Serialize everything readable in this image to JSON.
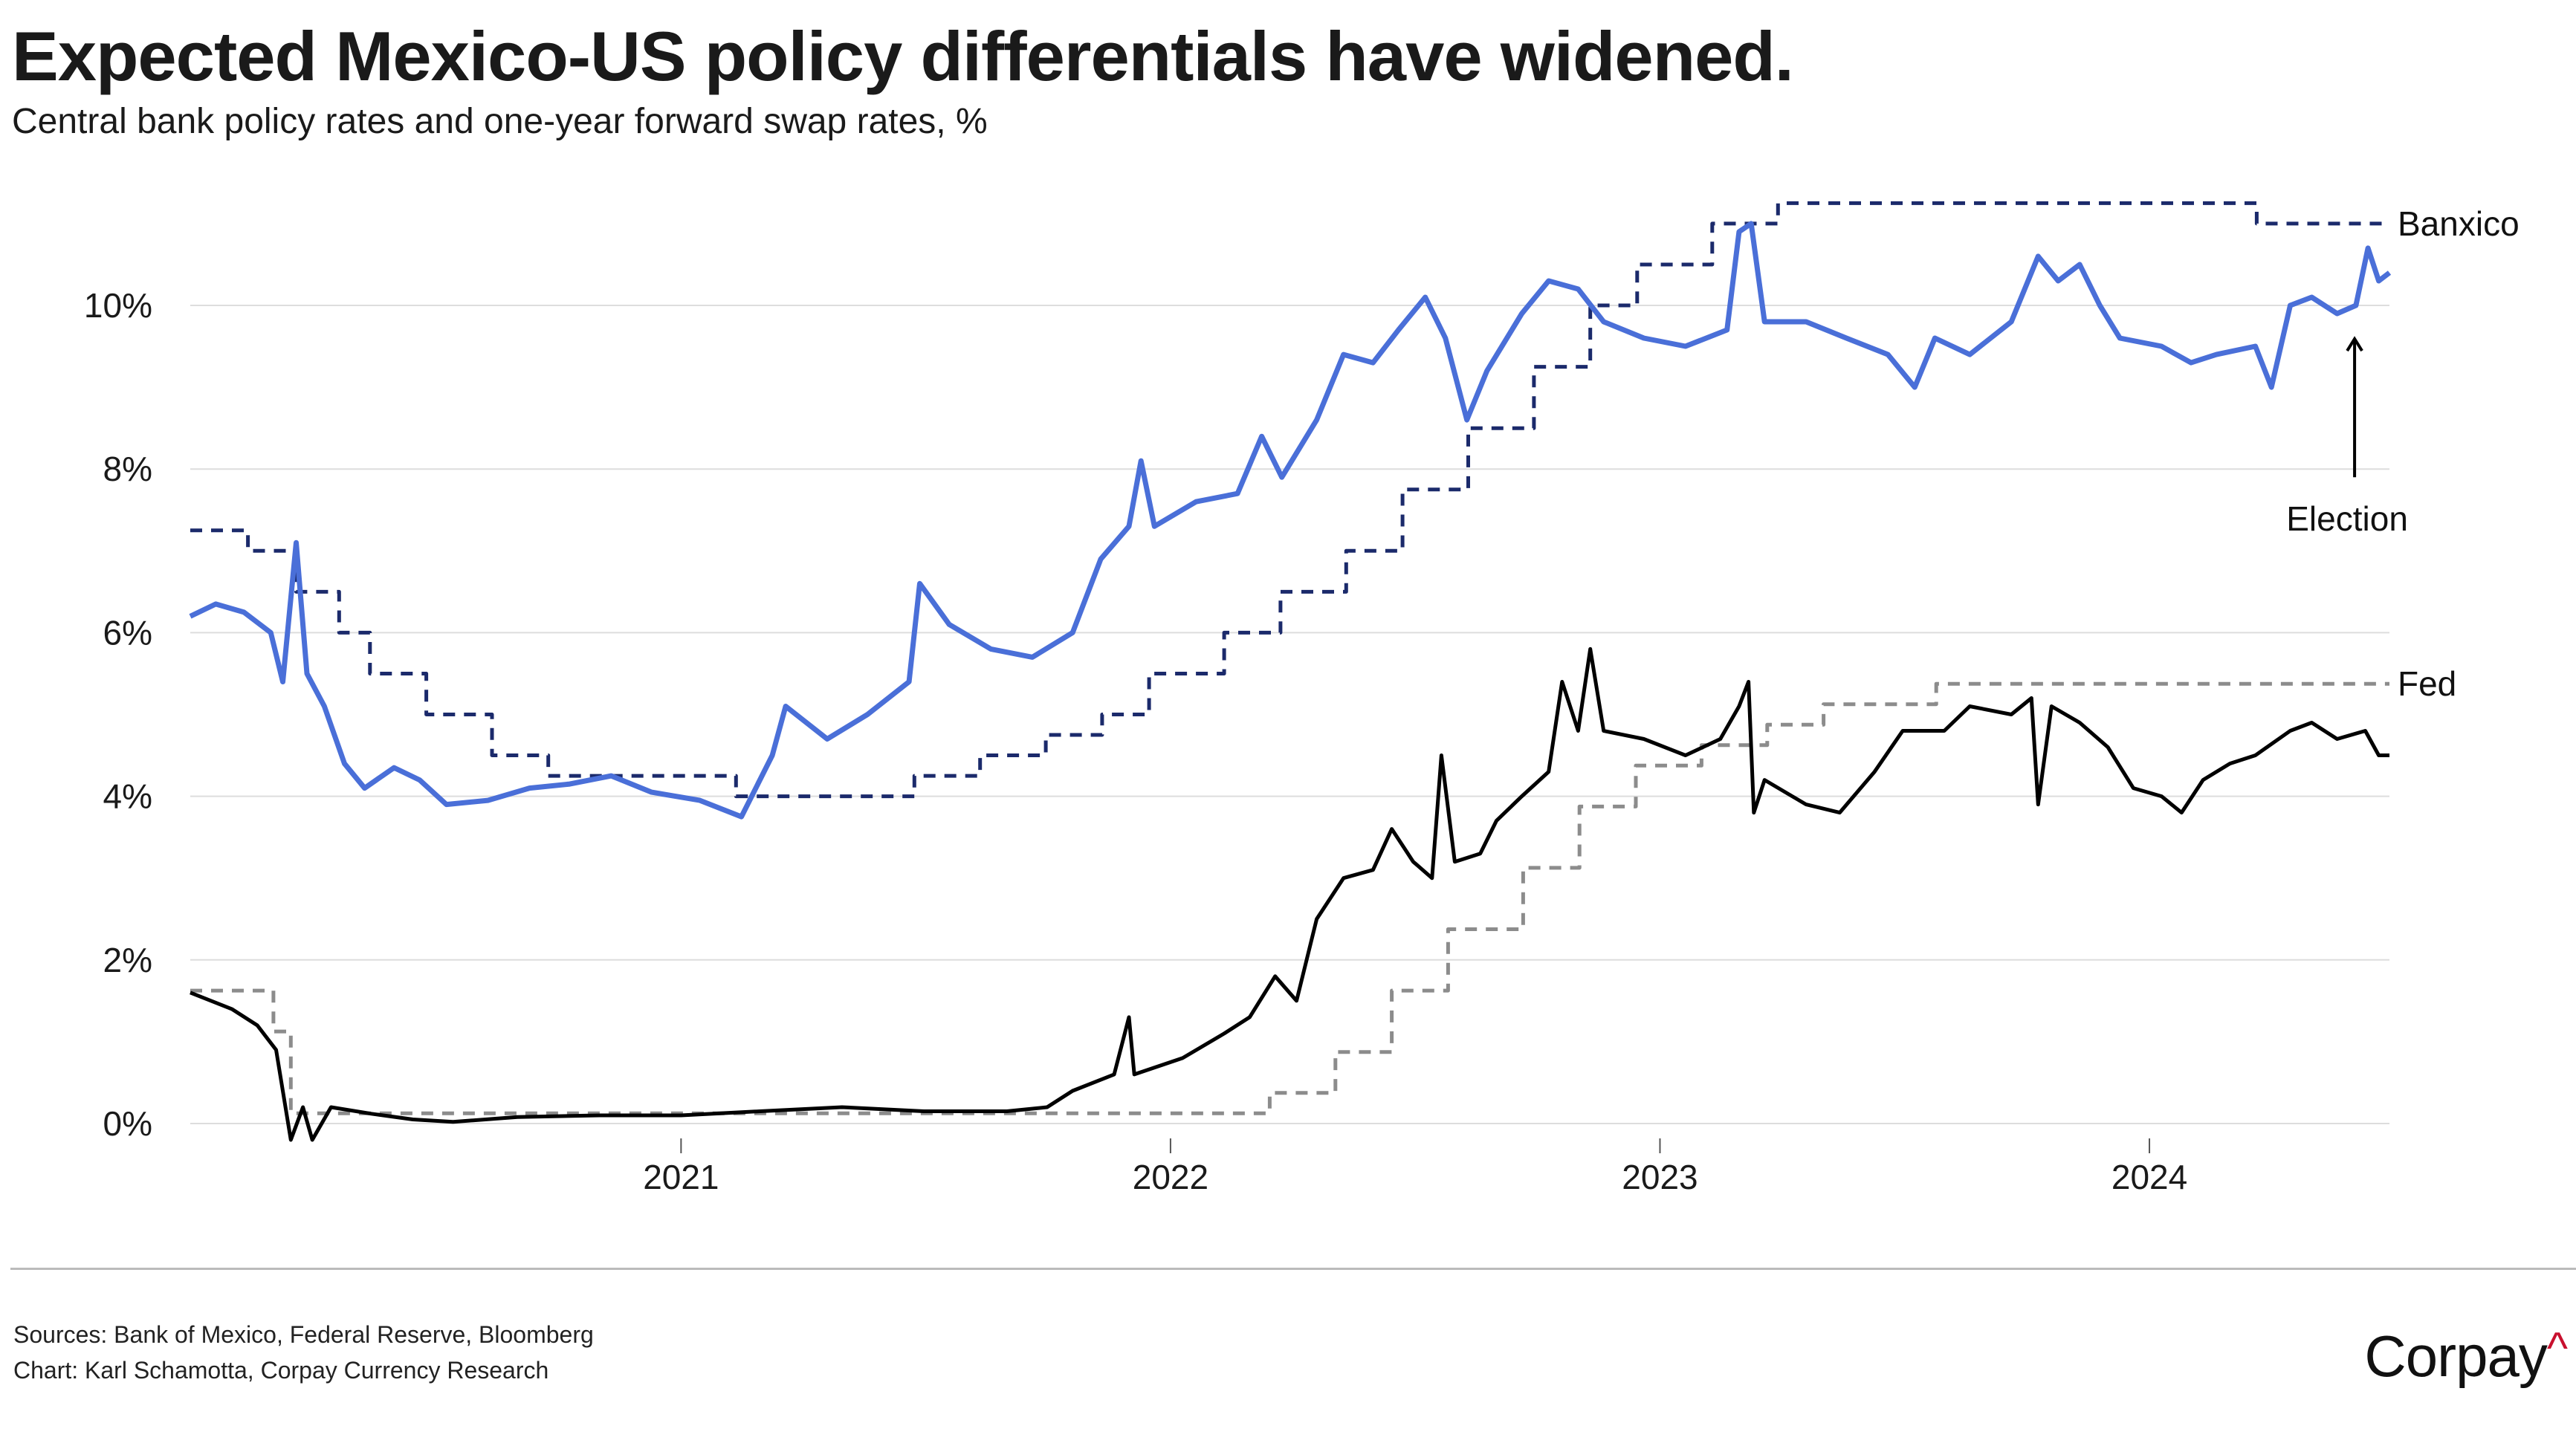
{
  "chart_data": {
    "type": "line",
    "title": "Expected Mexico-US policy differentials have widened.",
    "subtitle": "Central bank policy rates and one-year forward swap rates, %",
    "x_ticks": [
      "2021",
      "2022",
      "2023",
      "2024"
    ],
    "x_tick_dates": [
      "2021-01-01",
      "2022-01-01",
      "2023-01-01",
      "2024-01-01"
    ],
    "xlim": [
      "2020-01-01",
      "2024-06-28"
    ],
    "y_ticks": [
      "0%",
      "2%",
      "4%",
      "6%",
      "8%",
      "10%"
    ],
    "y_tick_values": [
      0,
      2,
      4,
      6,
      8,
      10
    ],
    "ylim": [
      -0.3,
      11.8
    ],
    "grid": "horizontal",
    "colors": {
      "banxico_swap": "#4a6fd8",
      "banxico_policy": "#1b2a6b",
      "fed_swap": "#000000",
      "fed_policy": "#8c8c8c",
      "grid": "#dddddd"
    },
    "series": [
      {
        "key": "banxico_policy",
        "style": "dashed-step",
        "points": [
          [
            "2020-01-01",
            7.25
          ],
          [
            "2020-02-13",
            7.0
          ],
          [
            "2020-03-20",
            6.5
          ],
          [
            "2020-04-21",
            6.0
          ],
          [
            "2020-05-14",
            5.5
          ],
          [
            "2020-06-25",
            5.0
          ],
          [
            "2020-08-13",
            4.5
          ],
          [
            "2020-09-24",
            4.25
          ],
          [
            "2021-02-11",
            4.0
          ],
          [
            "2021-06-24",
            4.25
          ],
          [
            "2021-08-12",
            4.5
          ],
          [
            "2021-09-30",
            4.75
          ],
          [
            "2021-11-11",
            5.0
          ],
          [
            "2021-12-16",
            5.5
          ],
          [
            "2022-02-10",
            6.0
          ],
          [
            "2022-03-24",
            6.5
          ],
          [
            "2022-05-12",
            7.0
          ],
          [
            "2022-06-23",
            7.75
          ],
          [
            "2022-08-11",
            8.5
          ],
          [
            "2022-09-29",
            9.25
          ],
          [
            "2022-11-10",
            10.0
          ],
          [
            "2022-12-15",
            10.5
          ],
          [
            "2023-02-09",
            11.0
          ],
          [
            "2023-03-30",
            11.25
          ],
          [
            "2024-03-21",
            11.0
          ],
          [
            "2024-06-28",
            11.0
          ]
        ]
      },
      {
        "key": "fed_policy",
        "style": "dashed-step",
        "points": [
          [
            "2020-01-01",
            1.625
          ],
          [
            "2020-03-03",
            1.125
          ],
          [
            "2020-03-16",
            0.125
          ],
          [
            "2022-03-16",
            0.375
          ],
          [
            "2022-05-04",
            0.875
          ],
          [
            "2022-06-15",
            1.625
          ],
          [
            "2022-07-27",
            2.375
          ],
          [
            "2022-09-21",
            3.125
          ],
          [
            "2022-11-02",
            3.875
          ],
          [
            "2022-12-14",
            4.375
          ],
          [
            "2023-02-01",
            4.625
          ],
          [
            "2023-03-22",
            4.875
          ],
          [
            "2023-05-03",
            5.125
          ],
          [
            "2023-07-26",
            5.375
          ],
          [
            "2024-06-28",
            5.375
          ]
        ]
      },
      {
        "key": "banxico_swap",
        "style": "solid",
        "points": [
          [
            "2020-01-01",
            6.2
          ],
          [
            "2020-01-20",
            6.35
          ],
          [
            "2020-02-10",
            6.25
          ],
          [
            "2020-03-01",
            6.0
          ],
          [
            "2020-03-10",
            5.4
          ],
          [
            "2020-03-20",
            7.1
          ],
          [
            "2020-03-28",
            5.5
          ],
          [
            "2020-04-10",
            5.1
          ],
          [
            "2020-04-25",
            4.4
          ],
          [
            "2020-05-10",
            4.1
          ],
          [
            "2020-06-01",
            4.35
          ],
          [
            "2020-06-20",
            4.2
          ],
          [
            "2020-07-10",
            3.9
          ],
          [
            "2020-08-10",
            3.95
          ],
          [
            "2020-09-10",
            4.1
          ],
          [
            "2020-10-10",
            4.15
          ],
          [
            "2020-11-10",
            4.25
          ],
          [
            "2020-12-10",
            4.05
          ],
          [
            "2021-01-15",
            3.95
          ],
          [
            "2021-02-15",
            3.75
          ],
          [
            "2021-03-10",
            4.5
          ],
          [
            "2021-03-20",
            5.1
          ],
          [
            "2021-04-20",
            4.7
          ],
          [
            "2021-05-20",
            5.0
          ],
          [
            "2021-06-20",
            5.4
          ],
          [
            "2021-06-28",
            6.6
          ],
          [
            "2021-07-20",
            6.1
          ],
          [
            "2021-08-20",
            5.8
          ],
          [
            "2021-09-20",
            5.7
          ],
          [
            "2021-10-20",
            6.0
          ],
          [
            "2021-11-10",
            6.9
          ],
          [
            "2021-12-01",
            7.3
          ],
          [
            "2021-12-10",
            8.1
          ],
          [
            "2021-12-20",
            7.3
          ],
          [
            "2022-01-20",
            7.6
          ],
          [
            "2022-02-20",
            7.7
          ],
          [
            "2022-03-10",
            8.4
          ],
          [
            "2022-03-25",
            7.9
          ],
          [
            "2022-04-20",
            8.6
          ],
          [
            "2022-05-10",
            9.4
          ],
          [
            "2022-06-01",
            9.3
          ],
          [
            "2022-06-20",
            9.7
          ],
          [
            "2022-07-10",
            10.1
          ],
          [
            "2022-07-25",
            9.6
          ],
          [
            "2022-08-10",
            8.6
          ],
          [
            "2022-08-25",
            9.2
          ],
          [
            "2022-09-20",
            9.9
          ],
          [
            "2022-10-10",
            10.3
          ],
          [
            "2022-11-01",
            10.2
          ],
          [
            "2022-11-20",
            9.8
          ],
          [
            "2022-12-20",
            9.6
          ],
          [
            "2023-01-20",
            9.5
          ],
          [
            "2023-02-20",
            9.7
          ],
          [
            "2023-03-01",
            10.9
          ],
          [
            "2023-03-10",
            11.0
          ],
          [
            "2023-03-20",
            9.8
          ],
          [
            "2023-04-20",
            9.8
          ],
          [
            "2023-05-20",
            9.6
          ],
          [
            "2023-06-20",
            9.4
          ],
          [
            "2023-07-10",
            9.0
          ],
          [
            "2023-07-25",
            9.6
          ],
          [
            "2023-08-20",
            9.4
          ],
          [
            "2023-09-20",
            9.8
          ],
          [
            "2023-10-10",
            10.6
          ],
          [
            "2023-10-25",
            10.3
          ],
          [
            "2023-11-10",
            10.5
          ],
          [
            "2023-11-25",
            10.0
          ],
          [
            "2023-12-10",
            9.6
          ],
          [
            "2024-01-10",
            9.5
          ],
          [
            "2024-02-01",
            9.3
          ],
          [
            "2024-02-20",
            9.4
          ],
          [
            "2024-03-20",
            9.5
          ],
          [
            "2024-04-01",
            9.0
          ],
          [
            "2024-04-15",
            10.0
          ],
          [
            "2024-05-01",
            10.1
          ],
          [
            "2024-05-20",
            9.9
          ],
          [
            "2024-06-03",
            10.0
          ],
          [
            "2024-06-12",
            10.7
          ],
          [
            "2024-06-20",
            10.3
          ],
          [
            "2024-06-28",
            10.4
          ]
        ]
      },
      {
        "key": "fed_swap",
        "style": "solid",
        "points": [
          [
            "2020-01-01",
            1.6
          ],
          [
            "2020-02-01",
            1.4
          ],
          [
            "2020-02-20",
            1.2
          ],
          [
            "2020-03-05",
            0.9
          ],
          [
            "2020-03-16",
            -0.2
          ],
          [
            "2020-03-25",
            0.2
          ],
          [
            "2020-04-01",
            -0.2
          ],
          [
            "2020-04-15",
            0.2
          ],
          [
            "2020-05-15",
            0.12
          ],
          [
            "2020-06-15",
            0.05
          ],
          [
            "2020-07-15",
            0.02
          ],
          [
            "2020-09-01",
            0.08
          ],
          [
            "2020-11-01",
            0.1
          ],
          [
            "2021-01-01",
            0.1
          ],
          [
            "2021-03-01",
            0.15
          ],
          [
            "2021-05-01",
            0.2
          ],
          [
            "2021-07-01",
            0.15
          ],
          [
            "2021-09-01",
            0.15
          ],
          [
            "2021-10-01",
            0.2
          ],
          [
            "2021-10-20",
            0.4
          ],
          [
            "2021-11-20",
            0.6
          ],
          [
            "2021-12-01",
            1.3
          ],
          [
            "2021-12-05",
            0.6
          ],
          [
            "2022-01-10",
            0.8
          ],
          [
            "2022-02-10",
            1.1
          ],
          [
            "2022-03-01",
            1.3
          ],
          [
            "2022-03-20",
            1.8
          ],
          [
            "2022-04-05",
            1.5
          ],
          [
            "2022-04-20",
            2.5
          ],
          [
            "2022-05-10",
            3.0
          ],
          [
            "2022-06-01",
            3.1
          ],
          [
            "2022-06-15",
            3.6
          ],
          [
            "2022-07-01",
            3.2
          ],
          [
            "2022-07-15",
            3.0
          ],
          [
            "2022-07-22",
            4.5
          ],
          [
            "2022-08-01",
            3.2
          ],
          [
            "2022-08-20",
            3.3
          ],
          [
            "2022-09-01",
            3.7
          ],
          [
            "2022-09-20",
            4.0
          ],
          [
            "2022-10-10",
            4.3
          ],
          [
            "2022-10-20",
            5.4
          ],
          [
            "2022-11-01",
            4.8
          ],
          [
            "2022-11-10",
            5.8
          ],
          [
            "2022-11-20",
            4.8
          ],
          [
            "2022-12-20",
            4.7
          ],
          [
            "2023-01-20",
            4.5
          ],
          [
            "2023-02-15",
            4.7
          ],
          [
            "2023-03-01",
            5.1
          ],
          [
            "2023-03-08",
            5.4
          ],
          [
            "2023-03-12",
            3.8
          ],
          [
            "2023-03-20",
            4.2
          ],
          [
            "2023-04-20",
            3.9
          ],
          [
            "2023-05-15",
            3.8
          ],
          [
            "2023-06-10",
            4.3
          ],
          [
            "2023-07-01",
            4.8
          ],
          [
            "2023-08-01",
            4.8
          ],
          [
            "2023-08-20",
            5.1
          ],
          [
            "2023-09-20",
            5.0
          ],
          [
            "2023-10-05",
            5.2
          ],
          [
            "2023-10-10",
            3.9
          ],
          [
            "2023-10-20",
            5.1
          ],
          [
            "2023-11-10",
            4.9
          ],
          [
            "2023-12-01",
            4.6
          ],
          [
            "2023-12-20",
            4.1
          ],
          [
            "2024-01-10",
            4.0
          ],
          [
            "2024-01-25",
            3.8
          ],
          [
            "2024-02-10",
            4.2
          ],
          [
            "2024-03-01",
            4.4
          ],
          [
            "2024-03-20",
            4.5
          ],
          [
            "2024-04-15",
            4.8
          ],
          [
            "2024-05-01",
            4.9
          ],
          [
            "2024-05-20",
            4.7
          ],
          [
            "2024-06-10",
            4.8
          ],
          [
            "2024-06-20",
            4.5
          ],
          [
            "2024-06-28",
            4.5
          ]
        ]
      }
    ],
    "labels": {
      "banxico": "Banxico",
      "fed": "Fed"
    },
    "annotation": {
      "text": "Election",
      "date": "2024-06-02",
      "value": 9.7
    }
  },
  "footer": {
    "sources": "Sources: Bank of Mexico, Federal Reserve,  Bloomberg",
    "credit": "Chart: Karl Schamotta, Corpay Currency Research"
  },
  "logo": {
    "text": "Corpay",
    "mark": "^"
  }
}
